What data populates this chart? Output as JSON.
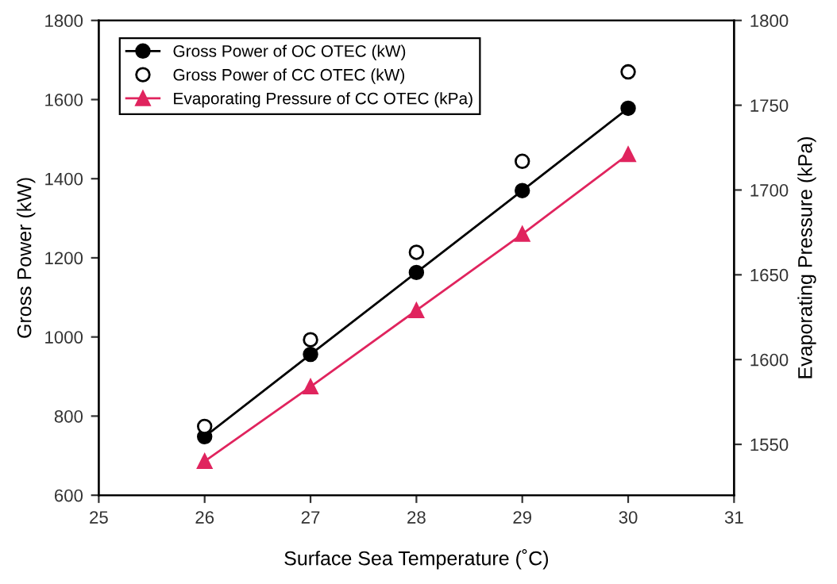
{
  "chart_data": {
    "type": "line",
    "xlabel": "Surface Sea Temperature (˚C)",
    "ylabel": "Gross Power (kW)",
    "y2label": "Evaporating Pressure (kPa)",
    "x": [
      26,
      27,
      28,
      29,
      30
    ],
    "series": [
      {
        "name": "Gross Power of OC OTEC (kW)",
        "color": "#000000",
        "values": [
          748,
          956,
          1163,
          1370,
          1578
        ],
        "marker": "circle"
      },
      {
        "name": "Gross Power of CC OTEC (kW)",
        "color": "#000000",
        "type": "scatter",
        "values": [
          774,
          993,
          1214,
          1444,
          1670
        ],
        "marker": "circle"
      },
      {
        "name": "Evaporating Pressure of CC OTEC (kPa)",
        "color": "#e0245e",
        "values": [
          1540,
          1584,
          1629,
          1674,
          1721
        ],
        "marker": "triangle",
        "axis": "y2"
      }
    ],
    "xlim": [
      25,
      31
    ],
    "xticks": [
      25,
      26,
      27,
      28,
      29,
      30,
      31
    ],
    "ylim": [
      600,
      1800
    ],
    "yticks": [
      600,
      800,
      1000,
      1200,
      1400,
      1600,
      1800
    ],
    "y2lim": [
      1520,
      1800
    ],
    "y2ticks": [
      1550,
      1600,
      1650,
      1700,
      1750,
      1800
    ],
    "grid": false,
    "legend": "top left",
    "line_style": "solid"
  }
}
